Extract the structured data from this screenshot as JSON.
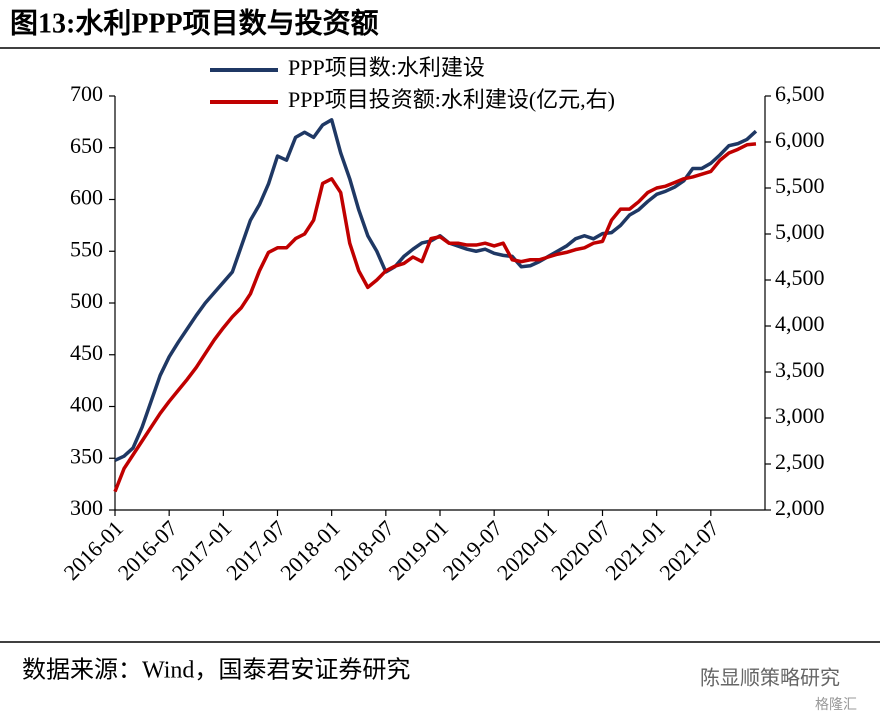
{
  "chart_data": {
    "type": "line",
    "title": "图13:水利PPP项目数与投资额",
    "source": "数据来源：Wind，国泰君安证券研究",
    "watermark": "陈显顺策略研究",
    "watermark2": "格隆汇",
    "x": [
      "2016-01",
      "2016-02",
      "2016-03",
      "2016-04",
      "2016-05",
      "2016-06",
      "2016-07",
      "2016-08",
      "2016-09",
      "2016-10",
      "2016-11",
      "2016-12",
      "2017-01",
      "2017-02",
      "2017-03",
      "2017-04",
      "2017-05",
      "2017-06",
      "2017-07",
      "2017-08",
      "2017-09",
      "2017-10",
      "2017-11",
      "2017-12",
      "2018-01",
      "2018-02",
      "2018-03",
      "2018-04",
      "2018-05",
      "2018-06",
      "2018-07",
      "2018-08",
      "2018-09",
      "2018-10",
      "2018-11",
      "2018-12",
      "2019-01",
      "2019-02",
      "2019-03",
      "2019-04",
      "2019-05",
      "2019-06",
      "2019-07",
      "2019-08",
      "2019-09",
      "2019-10",
      "2019-11",
      "2019-12",
      "2020-01",
      "2020-02",
      "2020-03",
      "2020-04",
      "2020-05",
      "2020-06",
      "2020-07",
      "2020-08",
      "2020-09",
      "2020-10",
      "2020-11",
      "2020-12",
      "2021-01",
      "2021-02",
      "2021-03",
      "2021-04",
      "2021-05",
      "2021-06",
      "2021-07",
      "2021-08",
      "2021-09",
      "2021-10",
      "2021-11",
      "2021-12"
    ],
    "xlim": [
      "2016-01",
      "2022-01"
    ],
    "xticks": [
      "2016-01",
      "2016-07",
      "2017-01",
      "2017-07",
      "2018-01",
      "2018-07",
      "2019-01",
      "2019-07",
      "2020-01",
      "2020-07",
      "2021-01",
      "2021-07"
    ],
    "series": [
      {
        "name": "PPP项目数:水利建设",
        "color": "#1f3864",
        "axis": "y",
        "values": [
          348,
          352,
          360,
          380,
          405,
          430,
          448,
          462,
          475,
          488,
          500,
          510,
          520,
          530,
          555,
          580,
          595,
          615,
          642,
          638,
          660,
          665,
          660,
          672,
          677,
          645,
          620,
          590,
          565,
          550,
          530,
          535,
          545,
          552,
          558,
          560,
          565,
          558,
          555,
          552,
          550,
          552,
          548,
          546,
          545,
          535,
          536,
          540,
          545,
          550,
          555,
          562,
          565,
          562,
          567,
          568,
          575,
          585,
          590,
          598,
          605,
          608,
          612,
          618,
          630,
          630,
          635,
          643,
          652,
          654,
          658,
          666
        ]
      },
      {
        "name": "PPP项目投资额:水利建设(亿元,右)",
        "color": "#c00000",
        "axis": "y2",
        "values": [
          2200,
          2450,
          2600,
          2750,
          2900,
          3050,
          3180,
          3300,
          3420,
          3550,
          3700,
          3850,
          3980,
          4100,
          4200,
          4350,
          4600,
          4800,
          4850,
          4850,
          4950,
          5000,
          5150,
          5550,
          5600,
          5450,
          4900,
          4600,
          4420,
          4500,
          4600,
          4650,
          4680,
          4750,
          4700,
          4950,
          4970,
          4900,
          4900,
          4880,
          4880,
          4900,
          4870,
          4900,
          4720,
          4700,
          4720,
          4720,
          4750,
          4780,
          4800,
          4830,
          4850,
          4900,
          4920,
          5150,
          5270,
          5270,
          5350,
          5450,
          5500,
          5520,
          5560,
          5600,
          5620,
          5650,
          5680,
          5800,
          5880,
          5920,
          5970,
          5980
        ]
      }
    ],
    "ylim": [
      300,
      700
    ],
    "yticks": [
      300,
      350,
      400,
      450,
      500,
      550,
      600,
      650,
      700
    ],
    "y2lim": [
      2000,
      6500
    ],
    "y2ticks": [
      {
        "value": 2000,
        "label": "2,000"
      },
      {
        "value": 2500,
        "label": "2,500"
      },
      {
        "value": 3000,
        "label": "3,000"
      },
      {
        "value": 3500,
        "label": "3,500"
      },
      {
        "value": 4000,
        "label": "4,000"
      },
      {
        "value": 4500,
        "label": "4,500"
      },
      {
        "value": 5000,
        "label": "5,000"
      },
      {
        "value": 5500,
        "label": "5,500"
      },
      {
        "value": 6000,
        "label": "6,000"
      },
      {
        "value": 6500,
        "label": "6,500"
      }
    ],
    "grid": false,
    "legend": "top"
  }
}
